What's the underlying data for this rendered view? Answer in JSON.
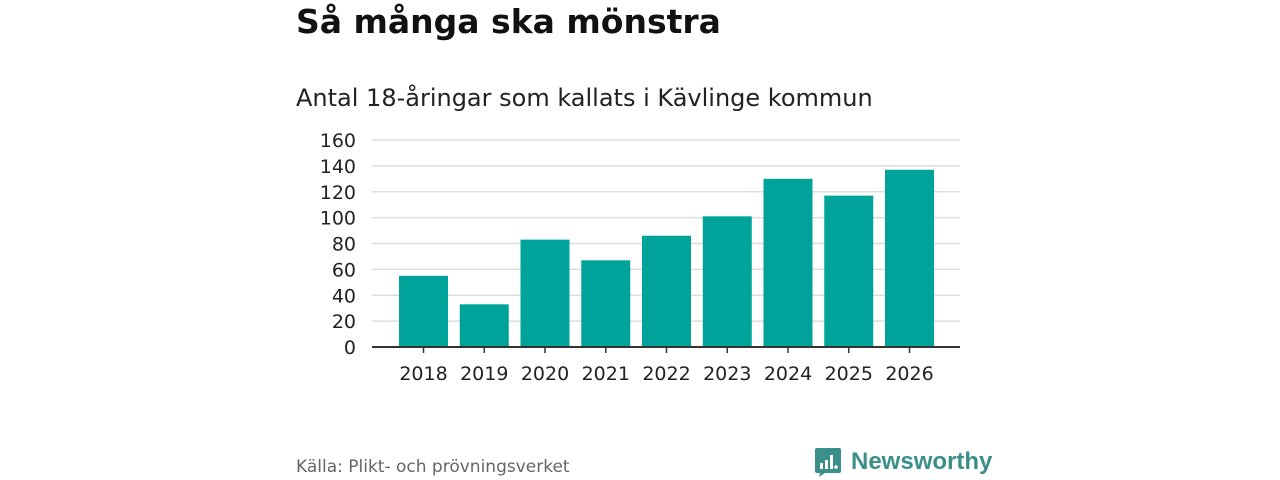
{
  "header": {
    "title": "Så många ska mönstra",
    "subtitle": "Antal 18-åringar som kallats i Kävlinge kommun"
  },
  "chart_data": {
    "type": "bar",
    "categories": [
      "2018",
      "2019",
      "2020",
      "2021",
      "2022",
      "2023",
      "2024",
      "2025",
      "2026"
    ],
    "values": [
      55,
      33,
      83,
      67,
      86,
      101,
      130,
      117,
      137
    ],
    "yticks": [
      "0",
      "20",
      "40",
      "60",
      "80",
      "100",
      "120",
      "140",
      "160"
    ],
    "ylim": [
      0,
      160
    ],
    "bar_color": "#00a39a",
    "grid": true,
    "xlabel": "",
    "ylabel": ""
  },
  "footer": {
    "source": "Källa: Plikt- och prövningsverket",
    "brand": "Newsworthy",
    "brand_color": "#3a8f8a",
    "brand_icon": "newsworthy-logo-icon"
  }
}
